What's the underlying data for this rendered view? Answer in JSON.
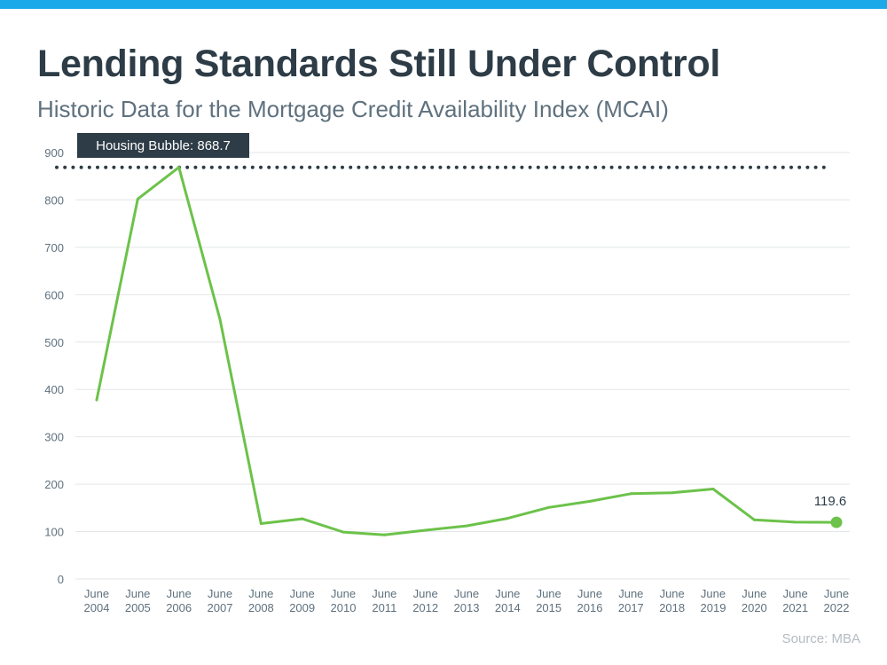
{
  "header": {
    "title": "Lending Standards Still Under Control",
    "subtitle": "Historic Data for the Mortgage Credit Availability Index (MCAI)"
  },
  "source": "Source: MBA",
  "colors": {
    "accent_bar": "#1ba9e9",
    "line": "#6cc24a",
    "reference_line": "#2d3c46",
    "callout_bg": "#2d3c46",
    "grid": "#e3e6e8",
    "tick_text": "#5f717e"
  },
  "chart_data": {
    "type": "line",
    "x": [
      2004,
      2005,
      2006,
      2007,
      2008,
      2009,
      2010,
      2011,
      2012,
      2013,
      2014,
      2015,
      2016,
      2017,
      2018,
      2019,
      2020,
      2021,
      2022
    ],
    "x_tick_labels": [
      [
        "June",
        "2004"
      ],
      [
        "June",
        "2005"
      ],
      [
        "June",
        "2006"
      ],
      [
        "June",
        "2007"
      ],
      [
        "June",
        "2008"
      ],
      [
        "June",
        "2009"
      ],
      [
        "June",
        "2010"
      ],
      [
        "June",
        "2011"
      ],
      [
        "June",
        "2012"
      ],
      [
        "June",
        "2013"
      ],
      [
        "June",
        "2014"
      ],
      [
        "June",
        "2015"
      ],
      [
        "June",
        "2016"
      ],
      [
        "June",
        "2017"
      ],
      [
        "June",
        "2018"
      ],
      [
        "June",
        "2019"
      ],
      [
        "June",
        "2020"
      ],
      [
        "June",
        "2021"
      ],
      [
        "June",
        "2022"
      ]
    ],
    "series": [
      {
        "values": [
          378,
          802,
          868.7,
          548,
          117,
          127,
          99,
          93,
          103,
          112,
          128,
          151,
          164,
          180,
          182,
          190,
          125,
          120,
          119.6
        ]
      }
    ],
    "ylim": [
      0,
      900
    ],
    "yticks": [
      0,
      100,
      200,
      300,
      400,
      500,
      600,
      700,
      800,
      900
    ],
    "grid": true,
    "legend": "none",
    "reference_line": {
      "value": 868.7,
      "label": "Housing Bubble: 868.7",
      "style": "dotted"
    },
    "end_point": {
      "x": 2022,
      "value": 119.6,
      "label": "119.6"
    }
  }
}
